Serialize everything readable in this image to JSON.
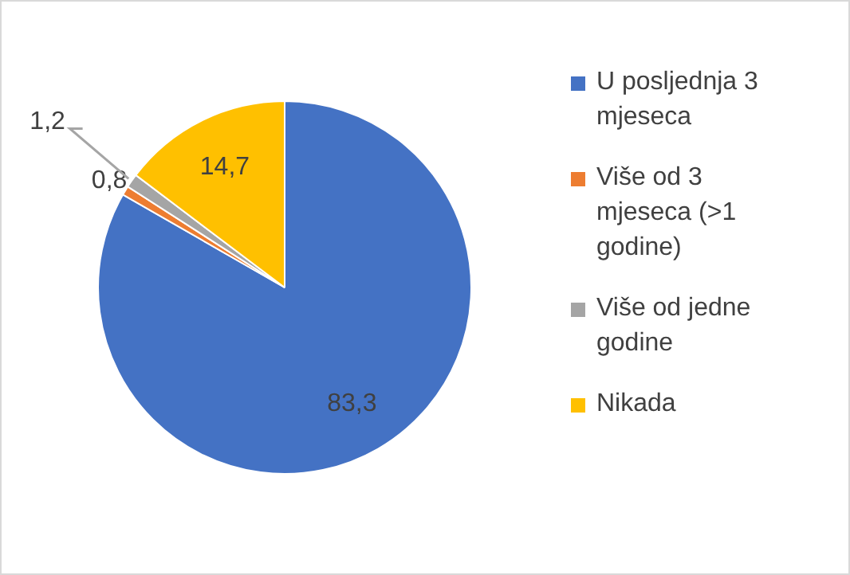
{
  "chart_data": {
    "type": "pie",
    "categories": [
      "U posljednja 3 mjeseca",
      "Više od 3 mjeseca (>1 godine)",
      "Više od jedne godine",
      "Nikada"
    ],
    "values": [
      83.3,
      0.8,
      1.2,
      14.7
    ],
    "colors": [
      "#4472c4",
      "#ed7d31",
      "#a5a5a5",
      "#ffc000"
    ],
    "value_labels": [
      "83,3",
      "0,8",
      "1,2",
      "14,7"
    ],
    "legend": "right"
  }
}
